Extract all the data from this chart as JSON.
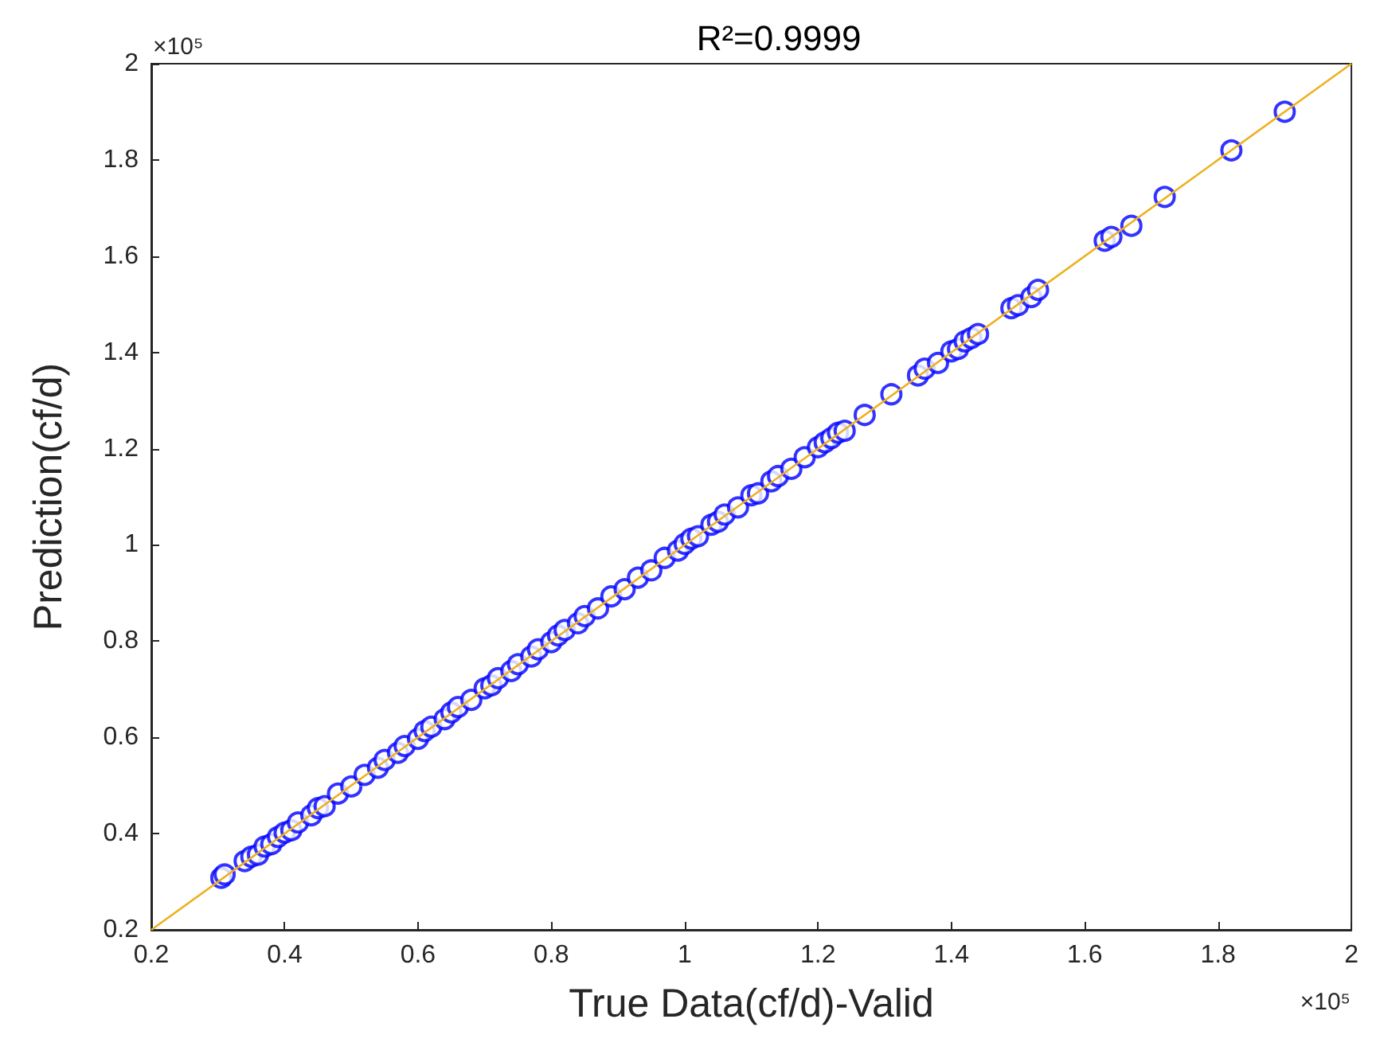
{
  "chart_data": {
    "type": "scatter",
    "title": "R²=0.9999",
    "xlabel": "True Data(cf/d)-Valid",
    "ylabel": "Prediction(cf/d)",
    "annotations": [
      "×10⁵",
      "×10⁵"
    ],
    "marker": "circle",
    "grid": false,
    "xlim": [
      0.2,
      2
    ],
    "xticks": [
      0.2,
      0.4,
      0.6,
      0.8,
      1,
      1.2,
      1.4,
      1.6,
      1.8,
      2
    ],
    "ylim": [
      0.2,
      2
    ],
    "yticks": [
      0.2,
      0.4,
      0.6,
      0.8,
      1,
      1.2,
      1.4,
      1.6,
      1.8,
      2
    ],
    "series": [
      {
        "type": "scatter",
        "color": "#0000ff",
        "x": [
          0.305,
          0.31,
          0.34,
          0.35,
          0.36,
          0.37,
          0.38,
          0.39,
          0.4,
          0.41,
          0.42,
          0.44,
          0.45,
          0.46,
          0.48,
          0.5,
          0.52,
          0.54,
          0.55,
          0.57,
          0.58,
          0.6,
          0.61,
          0.62,
          0.64,
          0.65,
          0.66,
          0.68,
          0.7,
          0.71,
          0.72,
          0.74,
          0.75,
          0.77,
          0.78,
          0.8,
          0.81,
          0.82,
          0.84,
          0.85,
          0.87,
          0.89,
          0.91,
          0.93,
          0.95,
          0.97,
          0.99,
          1,
          1.01,
          1.02,
          1.04,
          1.05,
          1.06,
          1.08,
          1.1,
          1.11,
          1.13,
          1.14,
          1.16,
          1.18,
          1.2,
          1.21,
          1.22,
          1.23,
          1.24,
          1.27,
          1.31,
          1.35,
          1.36,
          1.38,
          1.4,
          1.41,
          1.42,
          1.43,
          1.44,
          1.49,
          1.5,
          1.52,
          1.53,
          1.63,
          1.64,
          1.67,
          1.72,
          1.82,
          1.9
        ],
        "values": [
          0.308,
          0.315,
          0.343,
          0.352,
          0.356,
          0.373,
          0.378,
          0.393,
          0.402,
          0.407,
          0.423,
          0.438,
          0.453,
          0.457,
          0.483,
          0.498,
          0.522,
          0.537,
          0.553,
          0.568,
          0.582,
          0.597,
          0.613,
          0.622,
          0.638,
          0.652,
          0.663,
          0.678,
          0.702,
          0.708,
          0.723,
          0.738,
          0.752,
          0.768,
          0.783,
          0.798,
          0.812,
          0.823,
          0.837,
          0.852,
          0.868,
          0.893,
          0.908,
          0.932,
          0.947,
          0.973,
          0.988,
          1.002,
          1.013,
          1.018,
          1.042,
          1.048,
          1.063,
          1.078,
          1.103,
          1.107,
          1.132,
          1.143,
          1.158,
          1.182,
          1.203,
          1.213,
          1.222,
          1.233,
          1.237,
          1.27,
          1.313,
          1.352,
          1.366,
          1.378,
          1.402,
          1.407,
          1.423,
          1.43,
          1.438,
          1.492,
          1.498,
          1.515,
          1.53,
          1.632,
          1.64,
          1.663,
          1.723,
          1.82,
          1.9
        ]
      },
      {
        "type": "line",
        "color": "#edb120",
        "marker": "none",
        "x": [
          0.2,
          2
        ],
        "values": [
          0.2,
          2
        ]
      }
    ]
  }
}
